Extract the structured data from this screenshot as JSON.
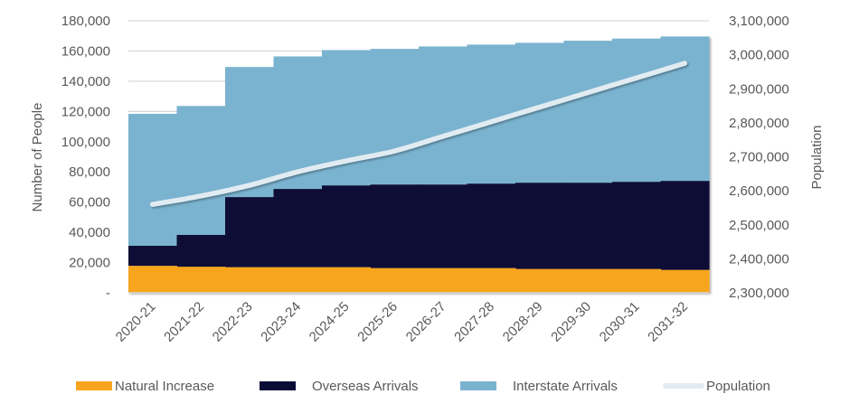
{
  "chart_data": {
    "type": "bar",
    "stacked": true,
    "title": "",
    "xlabel": "",
    "ylabel": "Number of People",
    "y2label": "Population",
    "ylim": [
      0,
      180000
    ],
    "y2lim": [
      2300000,
      3100000
    ],
    "yticks": [
      0,
      20000,
      40000,
      60000,
      80000,
      100000,
      120000,
      140000,
      160000,
      180000
    ],
    "ytick_labels": [
      "-",
      "20,000",
      "40,000",
      "60,000",
      "80,000",
      "100,000",
      "120,000",
      "140,000",
      "160,000",
      "180,000"
    ],
    "y2ticks": [
      2300000,
      2400000,
      2500000,
      2600000,
      2700000,
      2800000,
      2900000,
      3000000,
      3100000
    ],
    "y2tick_labels": [
      "2,300,000",
      "2,400,000",
      "2,500,000",
      "2,600,000",
      "2,700,000",
      "2,800,000",
      "2,900,000",
      "3,000,000",
      "3,100,000"
    ],
    "grid": true,
    "legend_position": "bottom",
    "categories": [
      "2020-21",
      "2021-22",
      "2022-23",
      "2023-24",
      "2024-25",
      "2025-26",
      "2026-27",
      "2027-28",
      "2028-29",
      "2029-30",
      "2030-31",
      "2031-32"
    ],
    "series": [
      {
        "name": "Natural Increase",
        "type": "bar",
        "axis": "left",
        "color": "#F7A51E",
        "values": [
          17800,
          17200,
          16900,
          16900,
          16900,
          16300,
          16300,
          16300,
          15700,
          15700,
          15700,
          15100
        ]
      },
      {
        "name": "Overseas Arrivals",
        "type": "bar",
        "axis": "left",
        "color": "#0A0C36",
        "values": [
          13300,
          21100,
          46400,
          51800,
          54100,
          55300,
          55300,
          55900,
          57100,
          57100,
          57700,
          58900
        ]
      },
      {
        "name": "Interstate Arrivals",
        "type": "bar",
        "axis": "left",
        "color": "#7AB3D0",
        "values": [
          87300,
          85300,
          86100,
          87700,
          89600,
          89800,
          91400,
          92000,
          92600,
          94000,
          94800,
          95600
        ]
      },
      {
        "name": "Population",
        "type": "line",
        "axis": "right",
        "color": "#E1ECF2",
        "values": [
          2560000,
          2585000,
          2616000,
          2656000,
          2688000,
          2717000,
          2760000,
          2803000,
          2846000,
          2889000,
          2932000,
          2975000
        ]
      }
    ]
  }
}
